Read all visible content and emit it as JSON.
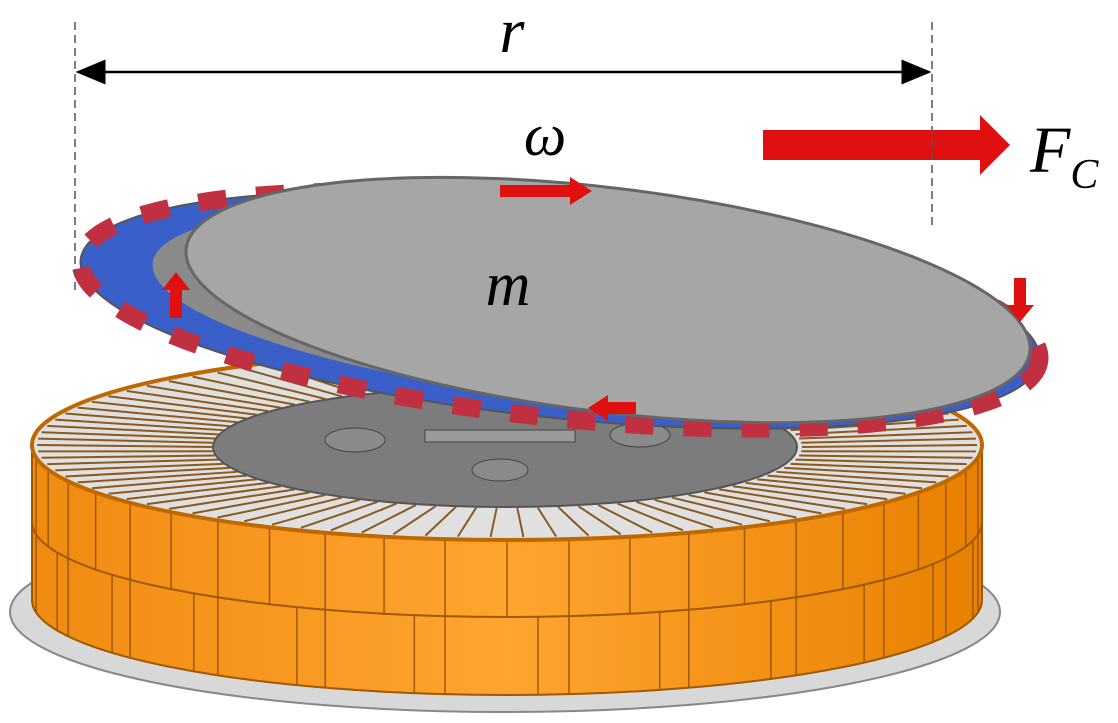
{
  "labels": {
    "radius": "r",
    "angular_velocity": "ω",
    "mass": "m",
    "force": {
      "symbol": "F",
      "subscript": "C"
    }
  }
}
